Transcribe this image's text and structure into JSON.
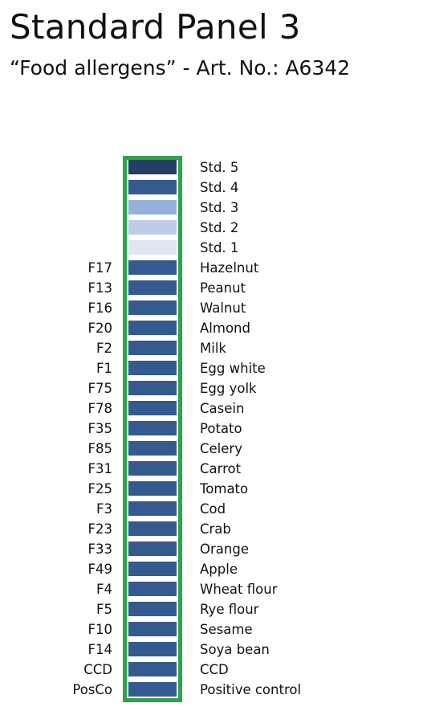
{
  "header": {
    "title": "Standard Panel 3",
    "subtitle": "“Food allergens” - Art. No.: A6342"
  },
  "colors": {
    "frame": "#2fa24a",
    "std5": "#253f63",
    "std4": "#355a8f",
    "std3": "#95b1d9",
    "std2": "#bccde5",
    "std1": "#dde6f2",
    "allergen": "#355a8f"
  },
  "rows": [
    {
      "code": "",
      "label": "Std. 5",
      "color": "#253f63"
    },
    {
      "code": "",
      "label": "Std. 4",
      "color": "#355a8f"
    },
    {
      "code": "",
      "label": "Std. 3",
      "color": "#95b1d9"
    },
    {
      "code": "",
      "label": "Std. 2",
      "color": "#bccde5"
    },
    {
      "code": "",
      "label": "Std. 1",
      "color": "#dde6f2"
    },
    {
      "code": "F17",
      "label": "Hazelnut",
      "color": "#355a8f"
    },
    {
      "code": "F13",
      "label": "Peanut",
      "color": "#355a8f"
    },
    {
      "code": "F16",
      "label": "Walnut",
      "color": "#355a8f"
    },
    {
      "code": "F20",
      "label": "Almond",
      "color": "#355a8f"
    },
    {
      "code": "F2",
      "label": "Milk",
      "color": "#355a8f"
    },
    {
      "code": "F1",
      "label": "Egg white",
      "color": "#355a8f"
    },
    {
      "code": "F75",
      "label": "Egg yolk",
      "color": "#355a8f"
    },
    {
      "code": "F78",
      "label": "Casein",
      "color": "#355a8f"
    },
    {
      "code": "F35",
      "label": "Potato",
      "color": "#355a8f"
    },
    {
      "code": "F85",
      "label": "Celery",
      "color": "#355a8f"
    },
    {
      "code": "F31",
      "label": "Carrot",
      "color": "#355a8f"
    },
    {
      "code": "F25",
      "label": "Tomato",
      "color": "#355a8f"
    },
    {
      "code": "F3",
      "label": "Cod",
      "color": "#355a8f"
    },
    {
      "code": "F23",
      "label": "Crab",
      "color": "#355a8f"
    },
    {
      "code": "F33",
      "label": "Orange",
      "color": "#355a8f"
    },
    {
      "code": "F49",
      "label": "Apple",
      "color": "#355a8f"
    },
    {
      "code": "F4",
      "label": "Wheat flour",
      "color": "#355a8f"
    },
    {
      "code": "F5",
      "label": "Rye flour",
      "color": "#355a8f"
    },
    {
      "code": "F10",
      "label": "Sesame",
      "color": "#355a8f"
    },
    {
      "code": "F14",
      "label": "Soya bean",
      "color": "#355a8f"
    },
    {
      "code": "CCD",
      "label": "CCD",
      "color": "#355a8f"
    },
    {
      "code": "PosCo",
      "label": "Positive control",
      "color": "#355a8f"
    }
  ]
}
